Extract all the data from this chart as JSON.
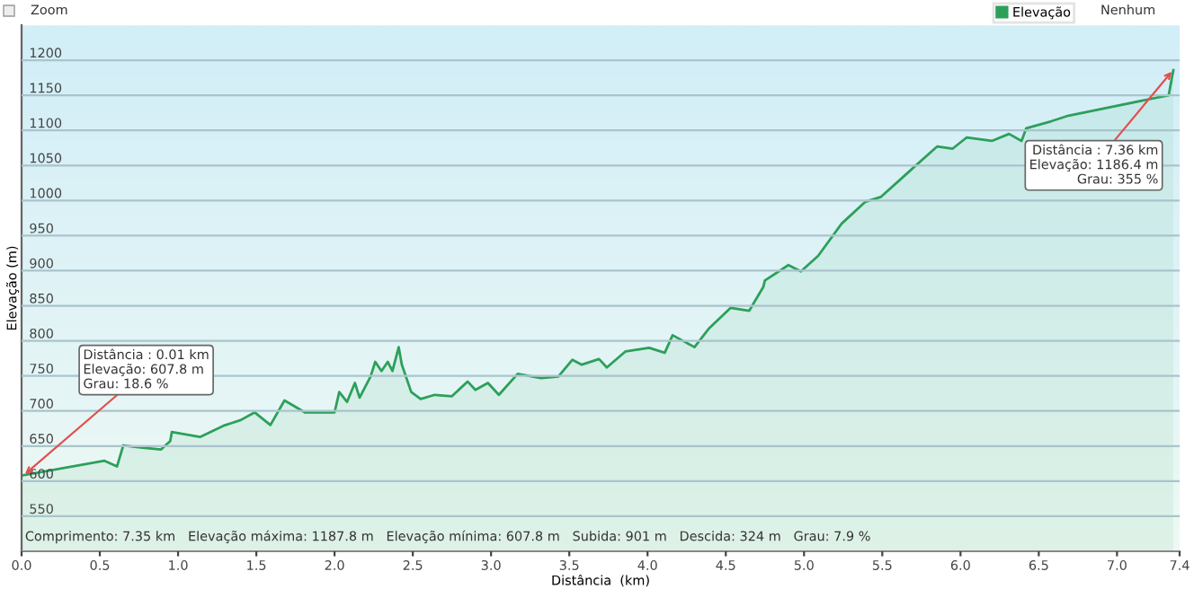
{
  "chart_data": {
    "type": "area",
    "xlabel": "Distância  (km)",
    "ylabel": "Elevação (m)",
    "x": [
      0.0,
      0.53,
      0.61,
      0.65,
      0.76,
      0.89,
      0.95,
      0.96,
      1.14,
      1.29,
      1.4,
      1.49,
      1.59,
      1.68,
      1.81,
      1.96,
      2.0,
      2.03,
      2.08,
      2.13,
      2.16,
      2.23,
      2.26,
      2.3,
      2.34,
      2.37,
      2.41,
      2.43,
      2.49,
      2.55,
      2.64,
      2.75,
      2.85,
      2.9,
      2.98,
      3.05,
      3.17,
      3.32,
      3.43,
      3.52,
      3.58,
      3.69,
      3.74,
      3.86,
      4.01,
      4.11,
      4.16,
      4.3,
      4.39,
      4.53,
      4.65,
      4.74,
      4.75,
      4.9,
      4.98,
      5.09,
      5.24,
      5.39,
      5.49,
      5.66,
      5.85,
      5.95,
      6.04,
      6.2,
      6.31,
      6.39,
      6.42,
      6.58,
      6.69,
      7.33,
      7.36
    ],
    "series": [
      {
        "name": "Elevação",
        "color": "#2ca05a",
        "values": [
          608,
          629,
          621,
          651,
          648,
          645,
          657,
          670,
          663,
          679,
          687,
          698,
          680,
          715,
          698,
          698,
          698,
          727,
          713,
          740,
          719,
          749,
          770,
          757,
          770,
          757,
          791,
          766,
          727,
          717,
          723,
          721,
          742,
          730,
          740,
          723,
          753,
          747,
          749,
          773,
          766,
          774,
          762,
          785,
          790,
          783,
          808,
          791,
          817,
          847,
          843,
          877,
          886,
          908,
          899,
          921,
          967,
          998,
          1005,
          1039,
          1077,
          1074,
          1090,
          1085,
          1095,
          1085,
          1103,
          1113,
          1121,
          1150,
          1186
        ]
      }
    ],
    "xlim": [
      0,
      7.4
    ],
    "ylim": [
      500,
      1250
    ],
    "xticks": [
      {
        "value": 0,
        "label": "0.0"
      },
      0.5,
      {
        "value": 1,
        "label": "1.0"
      },
      1.5,
      {
        "value": 2,
        "label": "2.0"
      },
      2.5,
      {
        "value": 3,
        "label": "3.0"
      },
      3.5,
      {
        "value": 4,
        "label": "4.0"
      },
      4.5,
      {
        "value": 5,
        "label": "5.0"
      },
      5.5,
      {
        "value": 6,
        "label": "6.0"
      },
      6.5,
      {
        "value": 7,
        "label": "7.0"
      },
      7.4
    ],
    "yticks": [
      550,
      600,
      650,
      700,
      750,
      800,
      850,
      900,
      950,
      1000,
      1050,
      1100,
      1150,
      1200
    ],
    "grid": "y",
    "legend": "top right",
    "annotations": [
      {
        "text": "Distância : 0.01 km\nElevação: 607.8 m\nGrau: 18.6 %",
        "x": 0.01,
        "y": 607.8
      },
      {
        "text": "Distância : 7.36 km\nElevação: 1186.4 m\nGrau: 355 %",
        "x": 7.36,
        "y": 1186.4
      },
      "Comprimento: 7.35 km   Elevação máxima: 1187.8 m   Elevação mínima: 607.8 m   Subida: 901 m   Descida: 324 m   Grau: 7.9 %",
      "Zoom",
      "Nenhum"
    ]
  }
}
